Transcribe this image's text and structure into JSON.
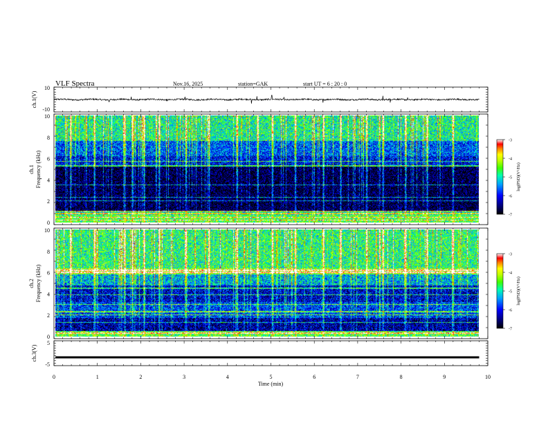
{
  "header": {
    "title": "VLF  Spectra",
    "date": "Nov.16, 2025",
    "station": "station=GAK",
    "start": "start  UT =   6  : 20 : 0"
  },
  "chart_data": [
    {
      "type": "line",
      "panel": "ch1-waveform",
      "ylabel": "ch.1(V)",
      "yticks": [
        "10",
        "-10"
      ],
      "ylim": [
        -10,
        10
      ],
      "xlim": [
        0,
        10
      ],
      "baseline": 0,
      "noise_level": 0.6,
      "spikes": [
        {
          "t": 1.78,
          "v": 2.3
        },
        {
          "t": 3.02,
          "v": 2.2
        },
        {
          "t": 4.55,
          "v": -3.2
        },
        {
          "t": 4.68,
          "v": 2.6
        },
        {
          "t": 5.02,
          "v": 3.4
        },
        {
          "t": 5.3,
          "v": 2.0
        },
        {
          "t": 6.2,
          "v": -2.5
        },
        {
          "t": 7.58,
          "v": 3.0
        },
        {
          "t": 7.75,
          "v": -2.4
        },
        {
          "t": 1.27,
          "v": -1.7
        },
        {
          "t": 8.15,
          "v": 1.6
        },
        {
          "t": 2.6,
          "v": -1.4
        }
      ]
    },
    {
      "type": "heatmap",
      "panel": "ch1-spectrogram",
      "ylabel": "ch.1\nFrequency (kHz)",
      "ylabel_line1": "ch.1",
      "ylabel_line2": "Frequency  (kHz)",
      "yticks": [
        "0",
        "2",
        "4",
        "6",
        "8",
        "10"
      ],
      "ylim": [
        0,
        10
      ],
      "xlim": [
        0,
        9.8
      ],
      "colorbar": {
        "label": "log(PSD)(V²/Hz)",
        "ticks": [
          "-3",
          "-4",
          "-5",
          "-6",
          "-7"
        ],
        "range": [
          -7,
          -3
        ]
      },
      "bands": [
        {
          "f0": 0.0,
          "f1": 0.7,
          "level": -4.6
        },
        {
          "f0": 0.7,
          "f1": 1.1,
          "level": -5.0
        },
        {
          "f0": 1.1,
          "f1": 5.2,
          "level": -6.8
        },
        {
          "f0": 5.2,
          "f1": 6.2,
          "level": -6.1
        },
        {
          "f0": 6.2,
          "f1": 7.6,
          "level": -5.7
        },
        {
          "f0": 7.6,
          "f1": 10.0,
          "level": -4.9
        }
      ],
      "lines_khz": [
        0.2,
        0.45,
        0.8,
        1.05,
        2.0,
        2.35,
        3.5,
        5.3,
        5.7
      ],
      "bursts_min": [
        0.35,
        0.9,
        1.6,
        1.78,
        2.05,
        2.4,
        3.02,
        3.55,
        4.2,
        4.68,
        5.02,
        5.55,
        6.2,
        6.6,
        7.2,
        7.58,
        8.1,
        8.6,
        9.2
      ]
    },
    {
      "type": "heatmap",
      "panel": "ch2-spectrogram",
      "ylabel": "ch.2\nFrequency (kHz)",
      "ylabel_line1": "ch.2",
      "ylabel_line2": "Frequency  (kHz)",
      "yticks": [
        "0",
        "2",
        "4",
        "6",
        "8",
        "10"
      ],
      "ylim": [
        0,
        10
      ],
      "xlim": [
        0,
        9.8
      ],
      "colorbar": {
        "label": "log(PSD)(V²/Hz)",
        "ticks": [
          "-3",
          "-4",
          "-5",
          "-6",
          "-7"
        ],
        "range": [
          -7,
          -3
        ]
      },
      "bands": [
        {
          "f0": 0.0,
          "f1": 0.5,
          "level": -4.6
        },
        {
          "f0": 0.5,
          "f1": 1.7,
          "level": -6.4
        },
        {
          "f0": 1.7,
          "f1": 3.2,
          "level": -5.8
        },
        {
          "f0": 3.2,
          "f1": 4.8,
          "level": -6.2
        },
        {
          "f0": 4.8,
          "f1": 5.8,
          "level": -5.3
        },
        {
          "f0": 5.8,
          "f1": 6.4,
          "level": -4.3
        },
        {
          "f0": 6.4,
          "f1": 10.0,
          "level": -4.8
        }
      ],
      "lines_khz": [
        0.3,
        1.3,
        2.0,
        2.3,
        3.0,
        3.9,
        4.5,
        6.0,
        6.2
      ],
      "bursts_min": [
        0.35,
        0.9,
        1.6,
        1.78,
        2.05,
        2.4,
        3.02,
        3.55,
        4.2,
        4.68,
        5.02,
        5.55,
        6.2,
        6.6,
        7.2,
        7.58,
        8.1,
        8.6,
        9.2
      ]
    },
    {
      "type": "line",
      "panel": "ch3-waveform",
      "ylabel": "ch.3(V)",
      "yticks": [
        "5",
        "-5"
      ],
      "ylim": [
        -5,
        5
      ],
      "xlim": [
        0,
        10
      ],
      "baseline": -2.3,
      "xlabel": "Time  (min)",
      "xticks": [
        "0",
        "1",
        "2",
        "3",
        "4",
        "5",
        "6",
        "7",
        "8",
        "9",
        "10"
      ]
    }
  ]
}
